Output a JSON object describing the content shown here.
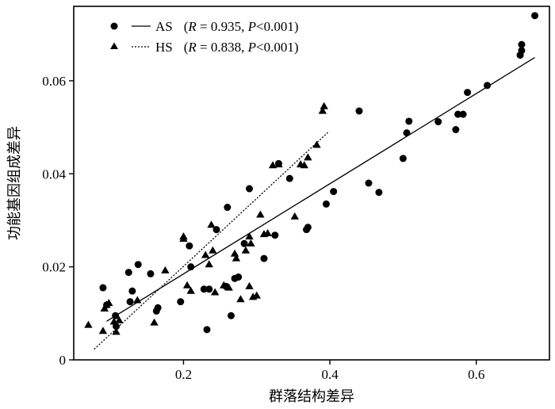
{
  "chart_data": {
    "type": "scatter",
    "xlabel": "群落结构差异",
    "ylabel": "功能基因组成差异",
    "xlim": [
      0.05,
      0.7
    ],
    "ylim": [
      0,
      0.076
    ],
    "xticks": [
      {
        "value": 0.2,
        "label": "0.2"
      },
      {
        "value": 0.4,
        "label": "0.4"
      },
      {
        "value": 0.6,
        "label": "0.6"
      }
    ],
    "yticks": [
      {
        "value": 0,
        "label": "0"
      },
      {
        "value": 0.02,
        "label": "0.02"
      },
      {
        "value": 0.04,
        "label": "0.04"
      },
      {
        "value": 0.06,
        "label": "0.06"
      }
    ],
    "grid": false,
    "legend_position": "top-left",
    "series": [
      {
        "name": "AS",
        "marker": "circle",
        "line": "solid",
        "stats": {
          "r_symbol": "R",
          "r_eq": " = 0.935, ",
          "p_symbol": "P",
          "p_text": "<0.001"
        },
        "fit": [
          [
            0.095,
            0.0083
          ],
          [
            0.68,
            0.065
          ]
        ],
        "points": [
          [
            0.09,
            0.0155
          ],
          [
            0.095,
            0.0118
          ],
          [
            0.107,
            0.0095
          ],
          [
            0.108,
            0.0072
          ],
          [
            0.125,
            0.0188
          ],
          [
            0.127,
            0.0125
          ],
          [
            0.13,
            0.0148
          ],
          [
            0.138,
            0.0205
          ],
          [
            0.155,
            0.0185
          ],
          [
            0.163,
            0.0105
          ],
          [
            0.165,
            0.0112
          ],
          [
            0.196,
            0.0125
          ],
          [
            0.208,
            0.0245
          ],
          [
            0.21,
            0.02
          ],
          [
            0.228,
            0.0152
          ],
          [
            0.232,
            0.0065
          ],
          [
            0.235,
            0.0152
          ],
          [
            0.245,
            0.028
          ],
          [
            0.258,
            0.0158
          ],
          [
            0.26,
            0.0328
          ],
          [
            0.265,
            0.0095
          ],
          [
            0.27,
            0.0175
          ],
          [
            0.275,
            0.0178
          ],
          [
            0.283,
            0.025
          ],
          [
            0.29,
            0.0368
          ],
          [
            0.31,
            0.0218
          ],
          [
            0.325,
            0.0268
          ],
          [
            0.33,
            0.0422
          ],
          [
            0.345,
            0.039
          ],
          [
            0.368,
            0.028
          ],
          [
            0.37,
            0.0285
          ],
          [
            0.395,
            0.0335
          ],
          [
            0.405,
            0.0362
          ],
          [
            0.44,
            0.0535
          ],
          [
            0.453,
            0.038
          ],
          [
            0.467,
            0.036
          ],
          [
            0.5,
            0.0433
          ],
          [
            0.505,
            0.0488
          ],
          [
            0.508,
            0.0513
          ],
          [
            0.548,
            0.0512
          ],
          [
            0.572,
            0.0495
          ],
          [
            0.575,
            0.0528
          ],
          [
            0.582,
            0.0528
          ],
          [
            0.588,
            0.0575
          ],
          [
            0.615,
            0.059
          ],
          [
            0.66,
            0.0655
          ],
          [
            0.662,
            0.0665
          ],
          [
            0.662,
            0.0678
          ],
          [
            0.68,
            0.074
          ]
        ]
      },
      {
        "name": "HS",
        "marker": "triangle",
        "line": "dotted",
        "stats": {
          "r_symbol": "R",
          "r_eq": " = 0.838, ",
          "p_symbol": "P",
          "p_text": "<0.001"
        },
        "fit": [
          [
            0.078,
            0.0023
          ],
          [
            0.398,
            0.049
          ]
        ],
        "points": [
          [
            0.07,
            0.0075
          ],
          [
            0.09,
            0.0062
          ],
          [
            0.092,
            0.011
          ],
          [
            0.095,
            0.0118
          ],
          [
            0.098,
            0.0122
          ],
          [
            0.105,
            0.0082
          ],
          [
            0.108,
            0.006
          ],
          [
            0.112,
            0.0085
          ],
          [
            0.137,
            0.0128
          ],
          [
            0.16,
            0.008
          ],
          [
            0.175,
            0.0192
          ],
          [
            0.2,
            0.026
          ],
          [
            0.2,
            0.0265
          ],
          [
            0.205,
            0.016
          ],
          [
            0.21,
            0.0148
          ],
          [
            0.23,
            0.0225
          ],
          [
            0.235,
            0.0205
          ],
          [
            0.238,
            0.029
          ],
          [
            0.24,
            0.0235
          ],
          [
            0.243,
            0.0145
          ],
          [
            0.255,
            0.016
          ],
          [
            0.262,
            0.0155
          ],
          [
            0.27,
            0.0228
          ],
          [
            0.272,
            0.0218
          ],
          [
            0.278,
            0.013
          ],
          [
            0.285,
            0.0235
          ],
          [
            0.29,
            0.0265
          ],
          [
            0.29,
            0.0158
          ],
          [
            0.292,
            0.025
          ],
          [
            0.295,
            0.0135
          ],
          [
            0.3,
            0.0138
          ],
          [
            0.305,
            0.0312
          ],
          [
            0.31,
            0.027
          ],
          [
            0.315,
            0.0272
          ],
          [
            0.322,
            0.0418
          ],
          [
            0.33,
            0.042
          ],
          [
            0.352,
            0.0308
          ],
          [
            0.36,
            0.042
          ],
          [
            0.365,
            0.0418
          ],
          [
            0.37,
            0.0435
          ],
          [
            0.382,
            0.0462
          ],
          [
            0.39,
            0.0535
          ],
          [
            0.392,
            0.0545
          ]
        ]
      }
    ]
  }
}
